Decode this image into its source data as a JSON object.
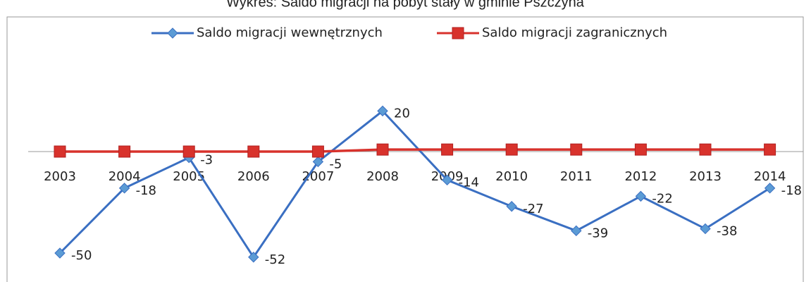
{
  "chart_data": {
    "type": "line",
    "title": "Wykres: Saldo migracji na pobyt stały w gminie Pszczyna",
    "categories": [
      "2003",
      "2004",
      "2005",
      "2006",
      "2007",
      "2008",
      "2009",
      "2010",
      "2011",
      "2012",
      "2013",
      "2014"
    ],
    "series": [
      {
        "name": "Saldo migracji wewnętrznych",
        "color": "#3a6fc2",
        "values": [
          -50,
          -18,
          -3,
          -52,
          -5,
          20,
          -14,
          -27,
          -39,
          -22,
          -38,
          -18
        ],
        "labels": true
      },
      {
        "name": "Saldo migracji zagranicznych",
        "color": "#d8322c",
        "values": [
          0,
          0,
          0,
          0,
          0,
          1,
          1,
          1,
          1,
          1,
          1,
          1
        ],
        "labels": false
      }
    ],
    "ylim": [
      -60,
      30
    ],
    "legend": "top"
  }
}
